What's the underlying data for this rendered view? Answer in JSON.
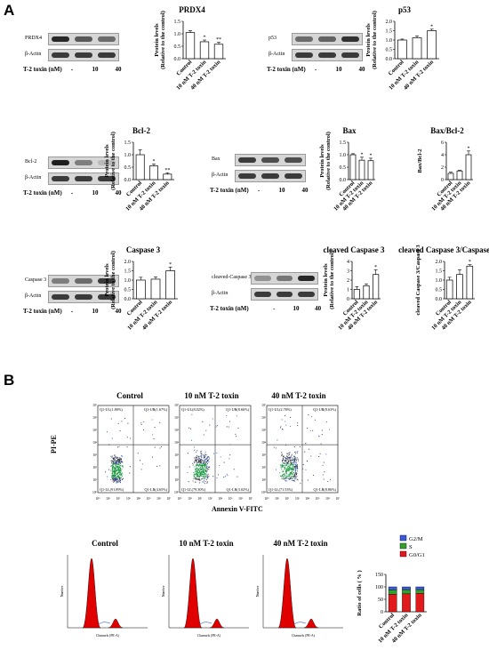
{
  "panels": {
    "a": "A",
    "b": "B"
  },
  "blot_caption": "T-2 toxin (nM)",
  "lanes": [
    "-",
    "10",
    "40"
  ],
  "beta_actin": "β-Actin",
  "bar_categories": [
    "Control",
    "10 nM T-2 toxin",
    "40 nM T-2 toxin"
  ],
  "blots": [
    {
      "protein": "PRDX4",
      "intensity": [
        0.9,
        0.65,
        0.55
      ]
    },
    {
      "protein": "p53",
      "intensity": [
        0.55,
        0.6,
        0.85
      ]
    },
    {
      "protein": "Bcl-2",
      "intensity": [
        0.95,
        0.45,
        0.15
      ]
    },
    {
      "protein": "Bax",
      "intensity": [
        0.8,
        0.7,
        0.7
      ]
    },
    {
      "protein": "Caspase 3",
      "intensity": [
        0.45,
        0.55,
        0.8
      ]
    },
    {
      "protein": "cleaved-Caspase 3",
      "intensity": [
        0.35,
        0.5,
        0.9
      ]
    }
  ],
  "chart_data": [
    {
      "type": "bar",
      "title": "PRDX4",
      "ylabel": "Protein levels\n(Relative to the control)",
      "categories": [
        "Control",
        "10 nM T-2 toxin",
        "40 nM T-2 toxin"
      ],
      "values": [
        1.05,
        0.68,
        0.58
      ],
      "errors": [
        0.08,
        0.07,
        0.08
      ],
      "sig": [
        "",
        "*",
        "**"
      ],
      "ylim": [
        0,
        1.5
      ],
      "yticks": [
        "0.0",
        "0.5",
        "1.0",
        "1.5"
      ]
    },
    {
      "type": "bar",
      "title": "p53",
      "ylabel": "Protein levels\n(Relative to the control)",
      "categories": [
        "Control",
        "10 nM T-2 toxin",
        "40 nM T-2 toxin"
      ],
      "values": [
        1.0,
        1.12,
        1.5
      ],
      "errors": [
        0.05,
        0.1,
        0.08
      ],
      "sig": [
        "",
        "",
        "*"
      ],
      "ylim": [
        0,
        2.0
      ],
      "yticks": [
        "0.0",
        "0.5",
        "1.0",
        "1.5",
        "2.0"
      ]
    },
    {
      "type": "bar",
      "title": "Bcl-2",
      "ylabel": "Protein levels\n(Relative to the control)",
      "categories": [
        "Control",
        "10 nM T-2 toxin",
        "40 nM T-2 toxin"
      ],
      "values": [
        1.0,
        0.55,
        0.22
      ],
      "errors": [
        0.2,
        0.08,
        0.05
      ],
      "sig": [
        "",
        "*",
        "**"
      ],
      "ylim": [
        0,
        1.5
      ],
      "yticks": [
        "0.0",
        "0.5",
        "1.0",
        "1.5"
      ]
    },
    {
      "type": "bar",
      "title": "Bax",
      "ylabel": "Protein levels\n(Relative to the control)",
      "categories": [
        "Control",
        "10 nM T-2 toxin",
        "40 nM T-2 toxin"
      ],
      "values": [
        1.0,
        0.78,
        0.76
      ],
      "errors": [
        0.04,
        0.12,
        0.1
      ],
      "sig": [
        "",
        "*",
        "*"
      ],
      "ylim": [
        0,
        1.5
      ],
      "yticks": [
        "0.0",
        "0.5",
        "1.0",
        "1.5"
      ]
    },
    {
      "type": "bar",
      "title": "Bax/Bcl-2",
      "ylabel": "Bax/Bcl-2",
      "categories": [
        "Control",
        "10 nM T-2 toxin",
        "40 nM T-2 toxin"
      ],
      "values": [
        1.0,
        1.4,
        4.0
      ],
      "errors": [
        0.2,
        0.1,
        0.6
      ],
      "sig": [
        "",
        "",
        "*"
      ],
      "ylim": [
        0,
        6
      ],
      "yticks": [
        "0",
        "2",
        "4",
        "6"
      ]
    },
    {
      "type": "bar",
      "title": "Caspase 3",
      "ylabel": "Protein levels\n(Relative to the control)",
      "categories": [
        "Control",
        "10 nM T-2 toxin",
        "40 nM T-2 toxin"
      ],
      "values": [
        1.0,
        1.05,
        1.5
      ],
      "errors": [
        0.15,
        0.12,
        0.2
      ],
      "sig": [
        "",
        "",
        "*"
      ],
      "ylim": [
        0,
        2.0
      ],
      "yticks": [
        "0.0",
        "0.5",
        "1.0",
        "1.5",
        "2.0"
      ]
    },
    {
      "type": "bar",
      "title": "cleaved Caspase 3",
      "ylabel": "Protein levels\n(Relative to the control)",
      "categories": [
        "Control",
        "10 nM T-2 toxin",
        "40 nM T-2 toxin"
      ],
      "values": [
        1.0,
        1.4,
        2.6
      ],
      "errors": [
        0.3,
        0.2,
        0.5
      ],
      "sig": [
        "",
        "",
        "*"
      ],
      "ylim": [
        0,
        4
      ],
      "yticks": [
        "0",
        "1",
        "2",
        "3",
        "4"
      ]
    },
    {
      "type": "bar",
      "title": "cleaved Caspase 3/Caspase 3",
      "ylabel": "cleaved Caspase 3/Caspase 3",
      "categories": [
        "Control",
        "10 nM T-2 toxin",
        "40 nM T-2 toxin"
      ],
      "values": [
        1.0,
        1.3,
        1.75
      ],
      "errors": [
        0.15,
        0.25,
        0.08
      ],
      "sig": [
        "",
        "",
        "*"
      ],
      "ylim": [
        0,
        2.0
      ],
      "yticks": [
        "0.0",
        "0.5",
        "1.0",
        "1.5",
        "2.0"
      ]
    },
    {
      "type": "bar",
      "title": "",
      "stacked": true,
      "ylabel": "Ratio of cells ( % )",
      "categories": [
        "Control",
        "10 nM T-2 toxin",
        "40 nM T-2 toxin"
      ],
      "series": [
        {
          "name": "G0/G1",
          "color": "#e31a1c",
          "values": [
            70,
            72,
            74
          ]
        },
        {
          "name": "S",
          "color": "#33a02c",
          "values": [
            18,
            17,
            15
          ]
        },
        {
          "name": "G2/M",
          "color": "#3b5bdb",
          "values": [
            12,
            11,
            11
          ]
        }
      ],
      "ylim": [
        0,
        150
      ],
      "yticks": [
        "0",
        "50",
        "100",
        "150"
      ],
      "legend": "top-right"
    }
  ],
  "flow": {
    "ylabel": "PI-PE",
    "xlabel": "Annexin V-FITC",
    "axis_ticks": [
      "10⁰",
      "10¹",
      "10²",
      "10³",
      "10⁴",
      "10⁵",
      "10⁶",
      "10⁷"
    ],
    "plots": [
      {
        "title": "Control",
        "ul": "Q1-UL(1.80%)",
        "ur": "Q1-UR(1.67%)",
        "ll": "Q1-LL(91.89%)",
        "lr": "Q1-LR(4.65%)"
      },
      {
        "title": "10 nM T-2 toxin",
        "ul": "Q1-UL(8.02%)",
        "ur": "Q1-UR(8.66%)",
        "ll": "Q1-LL(79.30%)",
        "lr": "Q1-LR(3.02%)"
      },
      {
        "title": "40 nM T-2 toxin",
        "ul": "Q1-UL(2.78%)",
        "ur": "Q1-UR(8.63%)",
        "ll": "Q1-LL(71.53%)",
        "lr": "Q1-LR(8.86%)"
      }
    ]
  },
  "cell_cycle": {
    "titles": [
      "Control",
      "10 nM T-2 toxin",
      "40 nM T-2 toxin"
    ],
    "axis_x": "Channels (PE-A)",
    "axis_y": "Number"
  }
}
